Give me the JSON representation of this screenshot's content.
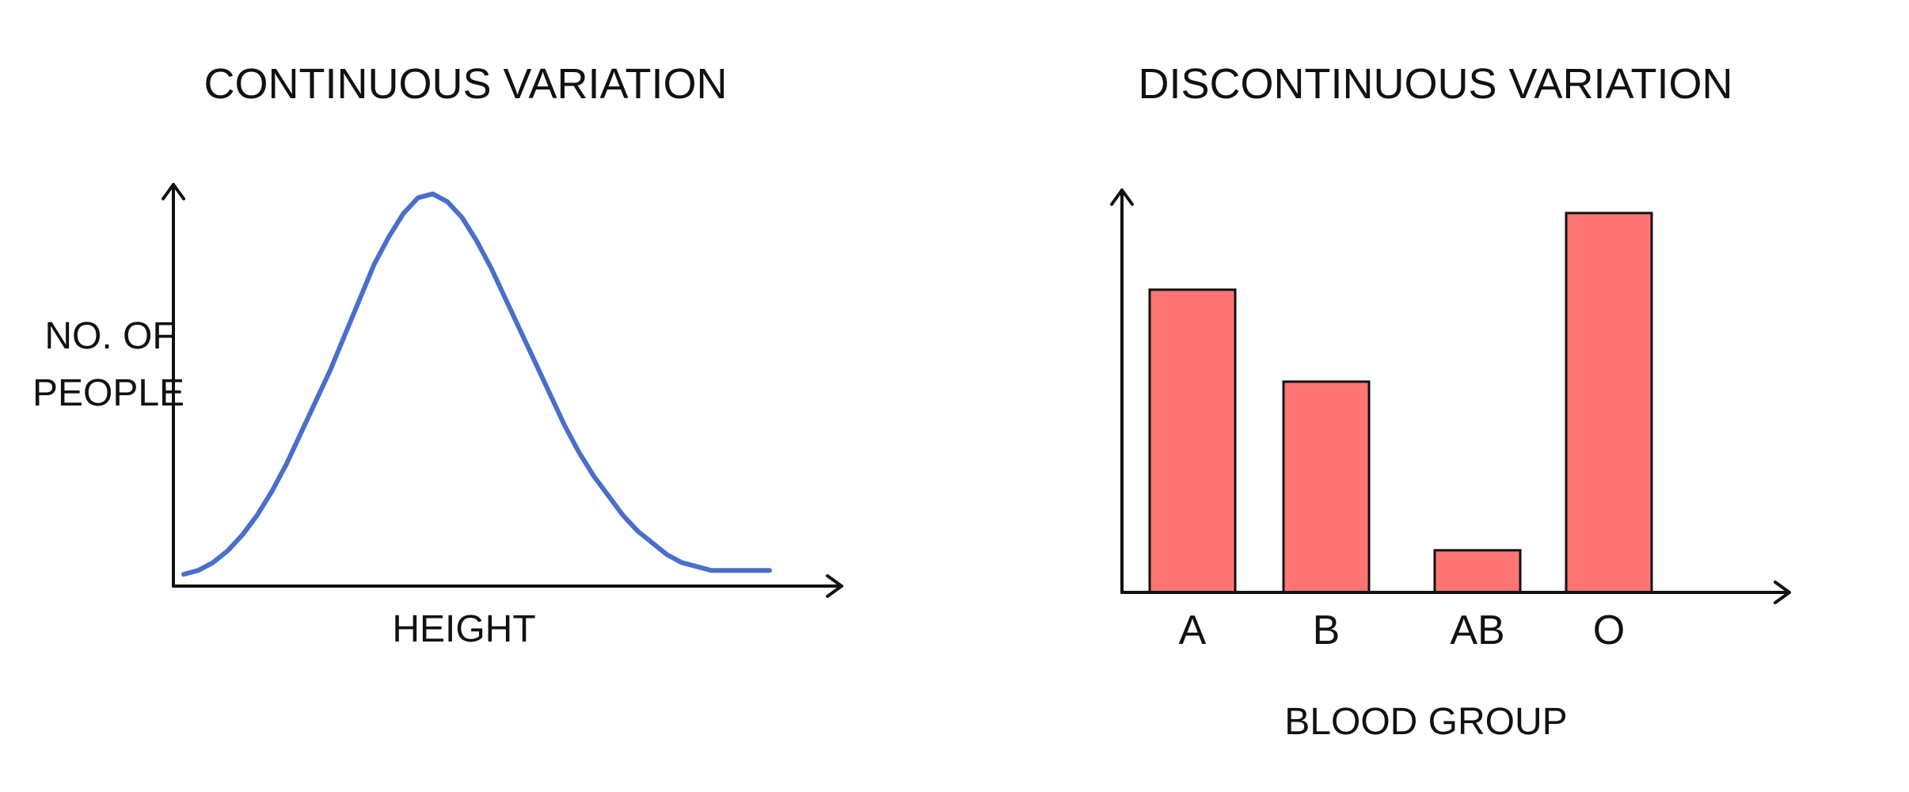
{
  "chart_data": [
    {
      "type": "line",
      "title": "CONTINUOUS VARIATION",
      "xlabel": "HEIGHT",
      "ylabel_lines": [
        "NO. OF",
        "PEOPLE"
      ],
      "x": [
        0,
        0.25,
        0.5,
        0.75,
        1,
        1.25,
        1.5,
        1.75,
        2,
        2.25,
        2.5,
        2.75,
        3,
        3.25,
        3.5,
        3.75,
        4,
        4.25,
        4.5,
        4.75,
        5,
        5.25,
        5.5,
        5.75,
        6,
        6.25,
        6.5,
        6.75,
        7,
        7.25,
        7.5,
        7.75,
        8,
        8.25,
        8.5,
        8.75,
        9,
        9.25,
        9.5,
        9.75,
        10
      ],
      "series": [
        {
          "values": [
            0.03,
            0.04,
            0.06,
            0.09,
            0.13,
            0.18,
            0.24,
            0.31,
            0.39,
            0.47,
            0.55,
            0.64,
            0.73,
            0.82,
            0.89,
            0.95,
            0.99,
            1.0,
            0.98,
            0.94,
            0.88,
            0.81,
            0.73,
            0.65,
            0.57,
            0.49,
            0.41,
            0.34,
            0.28,
            0.23,
            0.18,
            0.14,
            0.11,
            0.08,
            0.06,
            0.05,
            0.04,
            0.04,
            0.04,
            0.04,
            0.04
          ]
        }
      ],
      "xlim": [
        0,
        10
      ],
      "ylim": [
        0,
        1.05
      ],
      "grid": false,
      "colors": {
        "line": "#4a6ecb",
        "axis": "#111111"
      }
    },
    {
      "type": "bar",
      "title": "DISCONTINUOUS VARIATION",
      "xlabel": "BLOOD GROUP",
      "ylabel": "",
      "categories": [
        "A",
        "B",
        "AB",
        "O"
      ],
      "values": [
        7.9,
        5.5,
        1.1,
        9.9
      ],
      "ylim": [
        0,
        10.5
      ],
      "grid": false,
      "colors": {
        "bar_fill": "#ff7575",
        "bar_stroke": "#111111",
        "axis": "#111111"
      }
    }
  ]
}
